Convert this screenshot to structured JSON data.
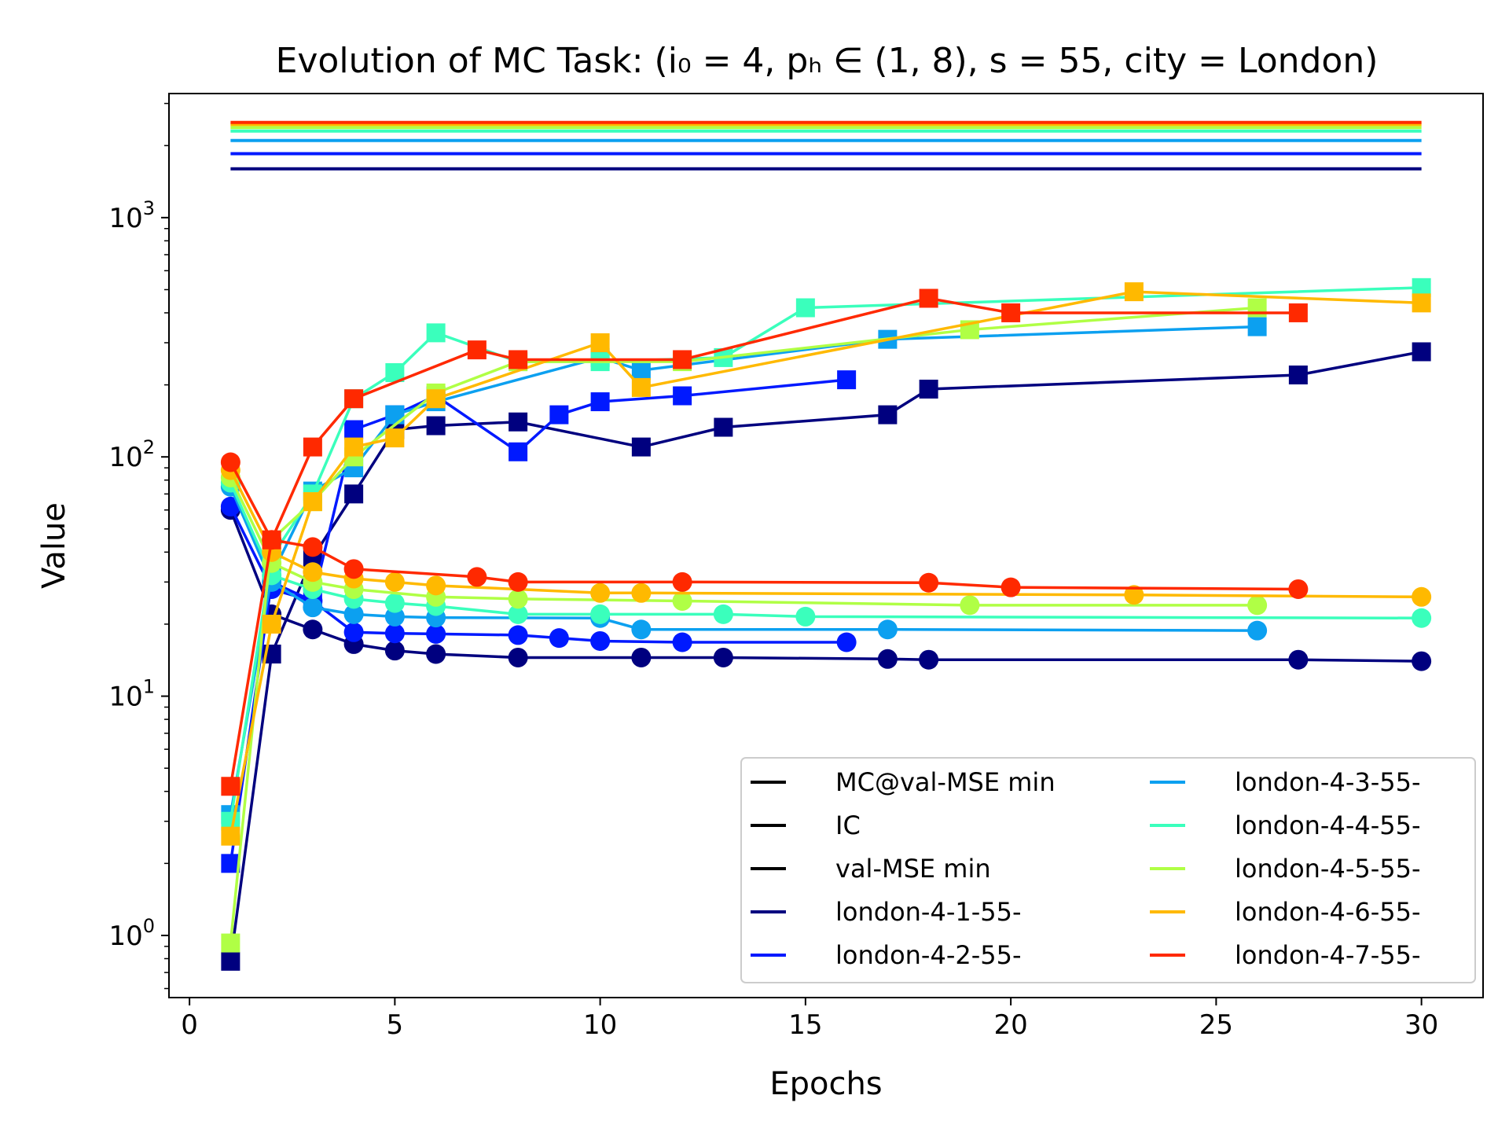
{
  "chart_data": {
    "type": "line",
    "title": "Evolution of MC Task: (i₀ = 4, pₕ ∈ (1, 8), s = 55, city = London)",
    "xlabel": "Epochs",
    "ylabel": "Value",
    "xlim": [
      -0.5,
      31.5
    ],
    "ylim": [
      0.55,
      3300
    ],
    "yscale": "log",
    "grid": false,
    "legend_position": "bottom-right",
    "xticks": [
      {
        "value": 0,
        "label": "0"
      },
      {
        "value": 5,
        "label": "5"
      },
      {
        "value": 10,
        "label": "10"
      },
      {
        "value": 15,
        "label": "15"
      },
      {
        "value": 20,
        "label": "20"
      },
      {
        "value": 25,
        "label": "25"
      },
      {
        "value": 30,
        "label": "30"
      }
    ],
    "yticks": [
      {
        "value": 1,
        "base": "10",
        "exp": "0"
      },
      {
        "value": 10,
        "base": "10",
        "exp": "1"
      },
      {
        "value": 100,
        "base": "10",
        "exp": "2"
      },
      {
        "value": 1000,
        "base": "10",
        "exp": "3"
      }
    ],
    "legend": [
      {
        "label": "MC@val-MSE min",
        "color": "#000000"
      },
      {
        "label": "IC",
        "color": "#000000"
      },
      {
        "label": "val-MSE min",
        "color": "#000000"
      },
      {
        "label": "london-4-1-55-",
        "color": "#00007f"
      },
      {
        "label": "london-4-2-55-",
        "color": "#0019ff"
      },
      {
        "label": "london-4-3-55-",
        "color": "#0ca0f0"
      },
      {
        "label": "london-4-4-55-",
        "color": "#3affbc"
      },
      {
        "label": "london-4-5-55-",
        "color": "#b0ff45"
      },
      {
        "label": "london-4-6-55-",
        "color": "#ffb900"
      },
      {
        "label": "london-4-7-55-",
        "color": "#ff2900"
      }
    ],
    "series": [
      {
        "name": "london-4-1-55-",
        "color": "#00007f",
        "ic": 1600,
        "mc_x": [
          1,
          2,
          3,
          4,
          5,
          6,
          8,
          11,
          13,
          17,
          18,
          27,
          30
        ],
        "mc_y": [
          0.78,
          15,
          38,
          70,
          130,
          135,
          140,
          110,
          133,
          150,
          192,
          220,
          275
        ],
        "val_x": [
          1,
          2,
          3,
          4,
          5,
          6,
          8,
          11,
          13,
          17,
          18,
          27,
          30
        ],
        "val_y": [
          60,
          22,
          19,
          16.5,
          15.5,
          15,
          14.5,
          14.5,
          14.5,
          14.3,
          14.2,
          14.2,
          14
        ]
      },
      {
        "name": "london-4-2-55-",
        "color": "#0019ff",
        "ic": 1850,
        "mc_x": [
          1,
          2,
          3,
          4,
          5,
          6,
          8,
          9,
          10,
          12,
          16
        ],
        "mc_y": [
          2.0,
          30,
          25,
          130,
          150,
          180,
          105,
          150,
          170,
          180,
          210
        ],
        "val_x": [
          1,
          2,
          3,
          4,
          5,
          6,
          8,
          9,
          10,
          12,
          16
        ],
        "val_y": [
          62,
          28,
          25,
          18.5,
          18.3,
          18.2,
          18,
          17.5,
          17,
          16.8,
          16.8
        ]
      },
      {
        "name": "london-4-3-55-",
        "color": "#0ca0f0",
        "ic": 2100,
        "mc_x": [
          1,
          2,
          3,
          4,
          5,
          6,
          10,
          11,
          17,
          26
        ],
        "mc_y": [
          3.2,
          32,
          72,
          90,
          150,
          170,
          260,
          230,
          310,
          350
        ],
        "val_x": [
          1,
          2,
          3,
          4,
          5,
          6,
          10,
          11,
          17,
          26
        ],
        "val_y": [
          75,
          30,
          23.5,
          22,
          21.5,
          21.3,
          21.2,
          19,
          19,
          18.8
        ]
      },
      {
        "name": "london-4-4-55-",
        "color": "#3affbc",
        "ic": 2300,
        "mc_x": [
          1,
          2,
          3,
          4,
          5,
          6,
          8,
          10,
          13,
          15,
          30
        ],
        "mc_y": [
          3.0,
          38,
          70,
          175,
          225,
          330,
          250,
          250,
          260,
          420,
          510
        ],
        "val_x": [
          1,
          2,
          3,
          4,
          5,
          6,
          8,
          10,
          13,
          15,
          30
        ],
        "val_y": [
          78,
          32,
          28,
          25.5,
          24.5,
          23.8,
          22,
          22,
          22,
          21.5,
          21.2
        ]
      },
      {
        "name": "london-4-5-55-",
        "color": "#b0ff45",
        "ic": 2380,
        "mc_x": [
          1,
          2,
          3,
          4,
          6,
          8,
          12,
          19,
          26
        ],
        "mc_y": [
          0.93,
          45,
          65,
          100,
          185,
          250,
          250,
          340,
          420
        ],
        "val_x": [
          1,
          2,
          3,
          4,
          6,
          8,
          12,
          19,
          26
        ],
        "val_y": [
          82,
          36,
          30,
          28,
          26,
          25.5,
          25,
          24,
          24
        ]
      },
      {
        "name": "london-4-6-55-",
        "color": "#ffb900",
        "ic": 2450,
        "mc_x": [
          1,
          2,
          3,
          4,
          5,
          6,
          10,
          11,
          23,
          30
        ],
        "mc_y": [
          2.6,
          20,
          65,
          110,
          120,
          175,
          300,
          195,
          490,
          440
        ],
        "val_x": [
          1,
          2,
          3,
          4,
          5,
          6,
          10,
          11,
          23,
          30
        ],
        "val_y": [
          88,
          40,
          33,
          31,
          30,
          29,
          27,
          27,
          26.5,
          26
        ]
      },
      {
        "name": "london-4-7-55-",
        "color": "#ff2900",
        "ic": 2500,
        "mc_x": [
          1,
          2,
          3,
          4,
          7,
          8,
          12,
          18,
          20,
          27
        ],
        "mc_y": [
          4.2,
          45,
          110,
          175,
          280,
          255,
          255,
          460,
          400,
          400
        ],
        "val_x": [
          1,
          2,
          3,
          4,
          7,
          8,
          12,
          18,
          20,
          27
        ],
        "val_y": [
          95,
          45,
          42,
          34,
          31.5,
          30,
          30,
          29.8,
          28.5,
          28
        ]
      }
    ]
  }
}
